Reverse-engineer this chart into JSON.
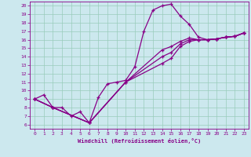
{
  "xlabel": "Windchill (Refroidissement éolien,°C)",
  "bg_color": "#cce8ee",
  "line_color": "#880088",
  "grid_color": "#99ccbb",
  "xlim": [
    -0.5,
    23.5
  ],
  "ylim": [
    5.5,
    20.5
  ],
  "xticks": [
    0,
    1,
    2,
    3,
    4,
    5,
    6,
    7,
    8,
    9,
    10,
    11,
    12,
    13,
    14,
    15,
    16,
    17,
    18,
    19,
    20,
    21,
    22,
    23
  ],
  "yticks": [
    6,
    7,
    8,
    9,
    10,
    11,
    12,
    13,
    14,
    15,
    16,
    17,
    18,
    19,
    20
  ],
  "line1_x": [
    0,
    1,
    2,
    3,
    4,
    5,
    6,
    7,
    8,
    9,
    10,
    11,
    12,
    13,
    14,
    15,
    16,
    17,
    18,
    19,
    20,
    21,
    22,
    23
  ],
  "line1_y": [
    9.0,
    9.5,
    8.0,
    8.0,
    7.0,
    7.5,
    6.2,
    9.2,
    10.8,
    11.0,
    11.2,
    12.8,
    17.0,
    19.5,
    20.0,
    20.2,
    18.8,
    17.8,
    16.3,
    16.0,
    16.1,
    16.3,
    16.4,
    16.8
  ],
  "line2_x": [
    0,
    2,
    6,
    10,
    14,
    15,
    16,
    17,
    18,
    19,
    20,
    21,
    22,
    23
  ],
  "line2_y": [
    9.0,
    8.0,
    6.2,
    11.0,
    14.8,
    15.2,
    15.8,
    16.2,
    16.0,
    16.0,
    16.1,
    16.3,
    16.4,
    16.8
  ],
  "line3_x": [
    0,
    2,
    6,
    10,
    14,
    15,
    16,
    17,
    18,
    19,
    20,
    21,
    22,
    23
  ],
  "line3_y": [
    9.0,
    8.0,
    6.2,
    11.0,
    14.0,
    14.5,
    15.5,
    16.0,
    16.0,
    16.0,
    16.1,
    16.3,
    16.4,
    16.8
  ],
  "line4_x": [
    0,
    2,
    6,
    10,
    14,
    15,
    16,
    17,
    18,
    19,
    20,
    21,
    22,
    23
  ],
  "line4_y": [
    9.0,
    8.0,
    6.2,
    11.0,
    13.2,
    13.8,
    15.2,
    15.8,
    16.0,
    16.0,
    16.1,
    16.3,
    16.4,
    16.8
  ]
}
